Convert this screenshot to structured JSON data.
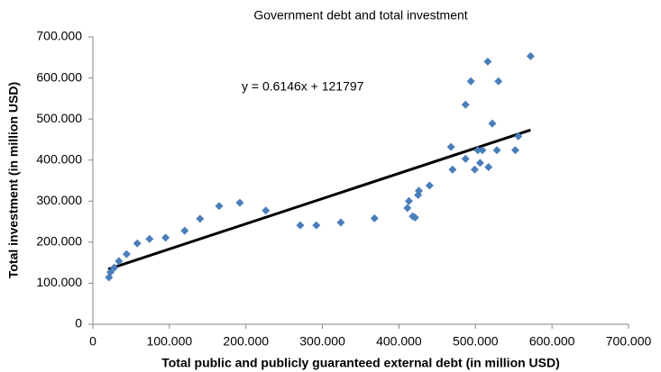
{
  "chart_data": {
    "type": "scatter",
    "title": "Government debt and total investment",
    "xlabel": "Total public and publicly guaranteed external debt (in million USD)",
    "ylabel": "Total investment (in million USD)",
    "annotation": "y = 0.6146x + 121797",
    "color": "#4a7ebb",
    "x": [
      21000,
      23000,
      28000,
      34000,
      44000,
      58000,
      74000,
      95000,
      120000,
      140000,
      165000,
      192000,
      226000,
      271000,
      292000,
      324000,
      368000,
      411000,
      413000,
      418000,
      421000,
      425000,
      426000,
      440000,
      468000,
      470000,
      487000,
      487000,
      494000,
      499000,
      503000,
      506000,
      509000,
      516000,
      517000,
      522000,
      528000,
      530000,
      552000,
      556000,
      572000
    ],
    "values": [
      114000,
      127000,
      138000,
      154000,
      171000,
      197000,
      208000,
      211000,
      228000,
      257000,
      288000,
      296000,
      277000,
      241000,
      241000,
      248000,
      258000,
      283000,
      300000,
      263000,
      260000,
      315000,
      325000,
      338000,
      432000,
      377000,
      403000,
      535000,
      592000,
      377000,
      424000,
      393000,
      424000,
      640000,
      383000,
      489000,
      424000,
      592000,
      424000,
      458000,
      653000
    ],
    "trendline": {
      "x": [
        20000,
        572000
      ],
      "values": [
        134089,
        473348
      ],
      "color": "#000000"
    },
    "xlim": [
      0,
      700000
    ],
    "xticks": [
      0,
      {
        "value": 100000,
        "label": "100.000"
      },
      {
        "value": 200000,
        "label": "200.000"
      },
      {
        "value": 300000,
        "label": "300.000"
      },
      {
        "value": 400000,
        "label": "400.000"
      },
      {
        "value": 500000,
        "label": "500.000"
      },
      {
        "value": 600000,
        "label": "600.000"
      },
      {
        "value": 700000,
        "label": "700.000"
      }
    ],
    "ylim": [
      0,
      700000
    ],
    "yticks": [
      0,
      {
        "value": 100000,
        "label": "100.000"
      },
      {
        "value": 200000,
        "label": "200.000"
      },
      {
        "value": 300000,
        "label": "300.000"
      },
      {
        "value": 400000,
        "label": "400.000"
      },
      {
        "value": 500000,
        "label": "500.000"
      },
      {
        "value": 600000,
        "label": "600.000"
      },
      {
        "value": 700000,
        "label": "700.000"
      }
    ],
    "grid": false
  }
}
